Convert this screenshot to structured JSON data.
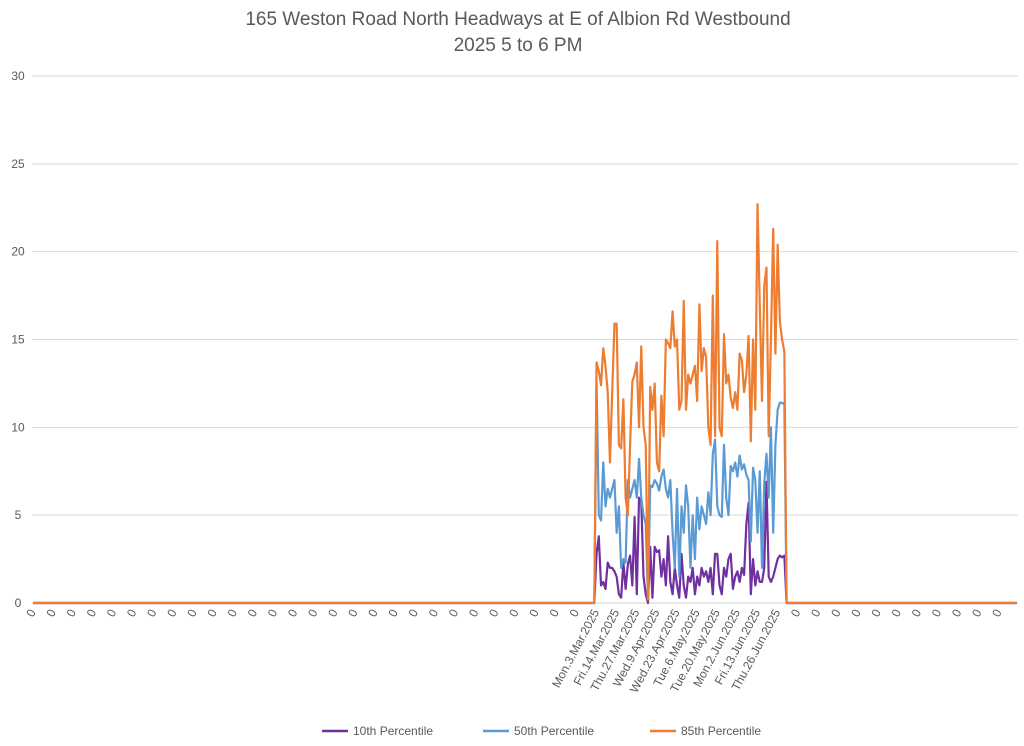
{
  "chart_data": {
    "type": "line",
    "title": "165 Weston Road North Headways at E of Albion Rd Westbound",
    "subtitle": "2025 5 to 6 PM",
    "xlabel": "",
    "ylabel": "",
    "ylim": [
      0,
      30
    ],
    "y_ticks": [
      "0",
      "5",
      "10",
      "15",
      "20",
      "25",
      "30"
    ],
    "grid": true,
    "legend_position": "bottom",
    "category_count": 441,
    "label_every": 9,
    "leading_zero_count": 252,
    "trailing_zero_count": 104,
    "x_tick_labels": [
      "0",
      "0",
      "0",
      "0",
      "0",
      "0",
      "0",
      "0",
      "0",
      "0",
      "0",
      "0",
      "0",
      "0",
      "0",
      "0",
      "0",
      "0",
      "0",
      "0",
      "0",
      "0",
      "0",
      "0",
      "0",
      "0",
      "0",
      "0",
      "Mon.3.Mar.2025",
      "Fri.14.Mar.2025",
      "Thu.27.Mar.2025",
      "Wed.9.Apr.2025",
      "Wed.23.Apr.2025",
      "Tue.6.May.2025",
      "Tue.20.May.2025",
      "Mon.2.Jun.2025",
      "Fri.13.Jun.2025",
      "Thu.26.Jun.2025",
      "0",
      "0",
      "0",
      "0",
      "0",
      "0",
      "0",
      "0",
      "0",
      "0",
      "0"
    ],
    "series": [
      {
        "name": "10th Percentile",
        "color": "#7030a0",
        "values": [
          2.8,
          3.8,
          1,
          1.2,
          0.8,
          2.3,
          2,
          2,
          1.8,
          1.5,
          0.5,
          0.3,
          2.3,
          0.8,
          2.2,
          2.7,
          1,
          4.9,
          0.5,
          6,
          5.8,
          1.5,
          0.5,
          0,
          3.2,
          0.3,
          3.2,
          2.9,
          3,
          1.5,
          2.5,
          1,
          3.8,
          1.2,
          0.5,
          2,
          1,
          0.3,
          2.8,
          1,
          0.3,
          1.5,
          1.2,
          2,
          0.5,
          1.5,
          1,
          2,
          1.5,
          1.8,
          1.2,
          2,
          0.5,
          2.8,
          2.8,
          1,
          0.5,
          2,
          1.5,
          2.5,
          2.8,
          0.8,
          1.5,
          1.8,
          1.2,
          2,
          1.6,
          4.5,
          5.7,
          0.5,
          2.5,
          1,
          1.8,
          1.2,
          1.2,
          2,
          6.9,
          1.5,
          1.2,
          1.5,
          2,
          2.5,
          2.7,
          2.6,
          2.7
        ]
      },
      {
        "name": "50th Percentile",
        "color": "#5b9bd5",
        "values": [
          12.7,
          5,
          4.7,
          8,
          5.5,
          6.5,
          6,
          6.5,
          7,
          4,
          5.5,
          2,
          2.5,
          2.3,
          7,
          6,
          6.5,
          7,
          6,
          8.2,
          6,
          5,
          4.5,
          0.2,
          6.7,
          6.6,
          7,
          6.8,
          6.4,
          7.2,
          7.6,
          6.5,
          6,
          7,
          4,
          2,
          6.5,
          1.5,
          5.5,
          4,
          6.7,
          5.5,
          2,
          5,
          2.5,
          6,
          4.2,
          5.5,
          5,
          4.5,
          6.3,
          5,
          8.5,
          9.3,
          5.5,
          5,
          4.9,
          9,
          6,
          5,
          7.8,
          7.5,
          8,
          7.2,
          8.4,
          7.6,
          7.9,
          7.3,
          7,
          3.5,
          7.7,
          7,
          4,
          7.5,
          2,
          6.8,
          8.5,
          6,
          10,
          4,
          9,
          11,
          11.4,
          11.4,
          11.3
        ]
      },
      {
        "name": "85th Percentile",
        "color": "#ed7d31",
        "values": [
          13.7,
          13.2,
          12.4,
          14.5,
          13.5,
          12,
          8,
          12,
          15.9,
          15.9,
          9,
          8.8,
          11.6,
          6,
          5,
          9,
          12.6,
          13,
          13.7,
          10,
          14.6,
          10,
          9,
          0.2,
          12.3,
          11,
          12.5,
          8,
          7.5,
          11.8,
          9.5,
          15,
          14.8,
          14.5,
          16.6,
          14.6,
          15,
          11,
          11.5,
          17.2,
          11,
          13,
          12.5,
          13,
          13.5,
          11.5,
          17,
          13.2,
          14.5,
          14,
          10,
          9,
          17.5,
          9.5,
          20.6,
          10,
          9.5,
          15.3,
          12.5,
          13,
          11.7,
          11.1,
          12,
          11,
          14.2,
          13.8,
          12,
          13,
          15.2,
          9.2,
          15,
          11,
          22.7,
          17,
          11.5,
          18,
          19.1,
          9.5,
          15,
          21.3,
          14.2,
          20.4,
          16,
          15,
          14.3
        ]
      }
    ]
  }
}
